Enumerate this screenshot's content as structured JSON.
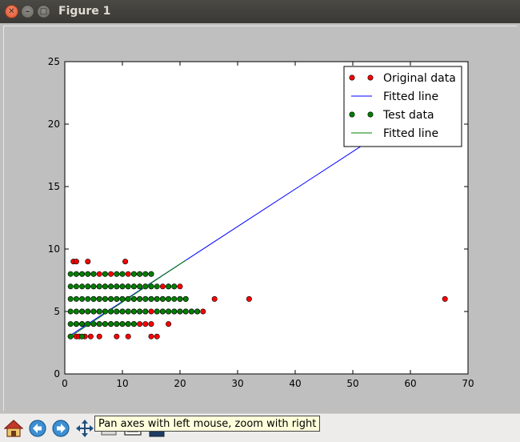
{
  "window": {
    "title": "Figure 1"
  },
  "titlebar_buttons": {
    "close_icon": "close-icon",
    "minimize_icon": "minimize-icon",
    "maximize_icon": "maximize-icon"
  },
  "toolbar": {
    "items": [
      "home-icon",
      "back-arrow-icon",
      "forward-arrow-icon",
      "pan-move-icon",
      "zoom-rect-icon",
      "subplots-config-icon",
      "save-icon"
    ],
    "tooltip": "Pan axes with left mouse, zoom with right"
  },
  "colors": {
    "original": "#ff0000",
    "fit_original": "#0000ff",
    "test": "#007f00",
    "fit_test": "#007f00"
  },
  "chart_data": {
    "type": "scatter",
    "title": "",
    "xlabel": "",
    "ylabel": "",
    "xlim": [
      0,
      70
    ],
    "ylim": [
      0,
      25
    ],
    "x_ticks": [
      0,
      10,
      20,
      30,
      40,
      50,
      60,
      70
    ],
    "y_ticks": [
      0,
      5,
      10,
      15,
      20,
      25
    ],
    "grid": false,
    "legend_position": "top-right",
    "series": [
      {
        "name": "Original data",
        "kind": "scatter",
        "color": "#ff0000",
        "points": [
          [
            1,
            3
          ],
          [
            2,
            3
          ],
          [
            2.5,
            3
          ],
          [
            3.5,
            3
          ],
          [
            4.5,
            3
          ],
          [
            6,
            3
          ],
          [
            9,
            3
          ],
          [
            11,
            3
          ],
          [
            15,
            3
          ],
          [
            16,
            3
          ],
          [
            2,
            4
          ],
          [
            3,
            4
          ],
          [
            4,
            4
          ],
          [
            5,
            4
          ],
          [
            6,
            4
          ],
          [
            7,
            4
          ],
          [
            8,
            4
          ],
          [
            9,
            4
          ],
          [
            10,
            4
          ],
          [
            11,
            4
          ],
          [
            12,
            4
          ],
          [
            13,
            4
          ],
          [
            14,
            4
          ],
          [
            15,
            4
          ],
          [
            18,
            4
          ],
          [
            3,
            5
          ],
          [
            4,
            5
          ],
          [
            5,
            5
          ],
          [
            6,
            5
          ],
          [
            7,
            5
          ],
          [
            8,
            5
          ],
          [
            9,
            5
          ],
          [
            10,
            5
          ],
          [
            11,
            5
          ],
          [
            12,
            5
          ],
          [
            13,
            5
          ],
          [
            14,
            5
          ],
          [
            15,
            5
          ],
          [
            16,
            5
          ],
          [
            17,
            5
          ],
          [
            18,
            5
          ],
          [
            19,
            5
          ],
          [
            20,
            5
          ],
          [
            21,
            5
          ],
          [
            22,
            5
          ],
          [
            23,
            5
          ],
          [
            24,
            5
          ],
          [
            5,
            6
          ],
          [
            6,
            6
          ],
          [
            7,
            6
          ],
          [
            8,
            6
          ],
          [
            9,
            6
          ],
          [
            10,
            6
          ],
          [
            11,
            6
          ],
          [
            12,
            6
          ],
          [
            13,
            6
          ],
          [
            14,
            6
          ],
          [
            15,
            6
          ],
          [
            16,
            6
          ],
          [
            17,
            6
          ],
          [
            18,
            6
          ],
          [
            20,
            6
          ],
          [
            21,
            6
          ],
          [
            26,
            6
          ],
          [
            32,
            6
          ],
          [
            66,
            6
          ],
          [
            4,
            7
          ],
          [
            5,
            7
          ],
          [
            6,
            7
          ],
          [
            7,
            7
          ],
          [
            8,
            7
          ],
          [
            9,
            7
          ],
          [
            10,
            7
          ],
          [
            11,
            7
          ],
          [
            12,
            7
          ],
          [
            13,
            7
          ],
          [
            14,
            7
          ],
          [
            15,
            7
          ],
          [
            17,
            7
          ],
          [
            18,
            7
          ],
          [
            19,
            7
          ],
          [
            20,
            7
          ],
          [
            2,
            8
          ],
          [
            3,
            8
          ],
          [
            4,
            8
          ],
          [
            5,
            8
          ],
          [
            6,
            8
          ],
          [
            7,
            8
          ],
          [
            8,
            8
          ],
          [
            9,
            8
          ],
          [
            10,
            8
          ],
          [
            11,
            8
          ],
          [
            12,
            8
          ],
          [
            13,
            8
          ],
          [
            14,
            8
          ],
          [
            15,
            8
          ],
          [
            1.5,
            9
          ],
          [
            2,
            9
          ],
          [
            4,
            9
          ],
          [
            10.5,
            9
          ]
        ]
      },
      {
        "name": "Fitted line",
        "kind": "line",
        "color": "#0000ff",
        "points": [
          [
            1,
            3.1
          ],
          [
            52,
            18.4
          ]
        ]
      },
      {
        "name": "Test data",
        "kind": "scatter",
        "color": "#007f00",
        "points": [
          [
            1,
            3
          ],
          [
            3,
            3
          ],
          [
            1,
            4
          ],
          [
            2,
            4
          ],
          [
            3,
            4
          ],
          [
            4,
            4
          ],
          [
            5,
            4
          ],
          [
            6,
            4
          ],
          [
            7,
            4
          ],
          [
            8,
            4
          ],
          [
            9,
            4
          ],
          [
            10,
            4
          ],
          [
            11,
            4
          ],
          [
            12,
            4
          ],
          [
            1,
            5
          ],
          [
            2,
            5
          ],
          [
            3,
            5
          ],
          [
            4,
            5
          ],
          [
            5,
            5
          ],
          [
            6,
            5
          ],
          [
            7,
            5
          ],
          [
            8,
            5
          ],
          [
            9,
            5
          ],
          [
            10,
            5
          ],
          [
            11,
            5
          ],
          [
            12,
            5
          ],
          [
            13,
            5
          ],
          [
            14,
            5
          ],
          [
            16,
            5
          ],
          [
            17,
            5
          ],
          [
            18,
            5
          ],
          [
            19,
            5
          ],
          [
            20,
            5
          ],
          [
            21,
            5
          ],
          [
            22,
            5
          ],
          [
            23,
            5
          ],
          [
            1,
            6
          ],
          [
            2,
            6
          ],
          [
            3,
            6
          ],
          [
            4,
            6
          ],
          [
            5,
            6
          ],
          [
            6,
            6
          ],
          [
            7,
            6
          ],
          [
            8,
            6
          ],
          [
            9,
            6
          ],
          [
            10,
            6
          ],
          [
            11,
            6
          ],
          [
            12,
            6
          ],
          [
            13,
            6
          ],
          [
            14,
            6
          ],
          [
            15,
            6
          ],
          [
            16,
            6
          ],
          [
            17,
            6
          ],
          [
            18,
            6
          ],
          [
            19,
            6
          ],
          [
            20,
            6
          ],
          [
            21,
            6
          ],
          [
            1,
            7
          ],
          [
            2,
            7
          ],
          [
            3,
            7
          ],
          [
            4,
            7
          ],
          [
            5,
            7
          ],
          [
            6,
            7
          ],
          [
            7,
            7
          ],
          [
            8,
            7
          ],
          [
            9,
            7
          ],
          [
            10,
            7
          ],
          [
            11,
            7
          ],
          [
            12,
            7
          ],
          [
            13,
            7
          ],
          [
            14,
            7
          ],
          [
            15,
            7
          ],
          [
            16,
            7
          ],
          [
            18,
            7
          ],
          [
            19,
            7
          ],
          [
            1,
            8
          ],
          [
            2,
            8
          ],
          [
            3,
            8
          ],
          [
            4,
            8
          ],
          [
            5,
            8
          ],
          [
            7,
            8
          ],
          [
            9,
            8
          ],
          [
            10,
            8
          ],
          [
            12,
            8
          ],
          [
            13,
            8
          ],
          [
            14,
            8
          ],
          [
            15,
            8
          ]
        ]
      },
      {
        "name": "Fitted line",
        "kind": "line",
        "color": "#007f00",
        "points": [
          [
            1,
            3.0
          ],
          [
            21,
            9.1
          ]
        ]
      }
    ]
  }
}
